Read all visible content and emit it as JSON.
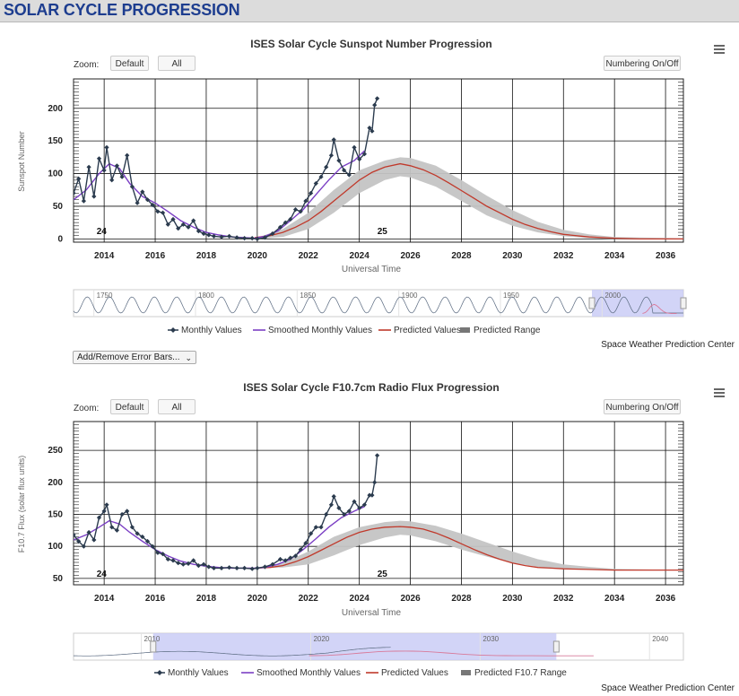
{
  "page": {
    "title": "SOLAR CYCLE PROGRESSION"
  },
  "colors": {
    "monthly": "#2b3b4e",
    "smoothed": "#7b3fc4",
    "predicted": "#c0392b",
    "range": "#c4c4c4",
    "navigator_fill": "#c7c9f5",
    "header_text": "#1d3d8f"
  },
  "icons": {
    "menu": "hamburger-menu-icon",
    "handle": "navigator-handle-icon",
    "dropdown": "chevron-down-icon"
  },
  "controls": {
    "zoom_label": "Zoom:",
    "default_label": "Default",
    "all_label": "All",
    "numbering_label": "Numbering On/Off",
    "error_bars_label": "Add/Remove Error Bars..."
  },
  "credit": "Space Weather Prediction Center",
  "charts": [
    {
      "id": "ssn",
      "title": "ISES Solar Cycle Sunspot Number Progression",
      "xlabel": "Universal Time",
      "ylabel": "Sunspot Number",
      "x_ticks": [
        "2014",
        "2016",
        "2018",
        "2020",
        "2022",
        "2024",
        "2026",
        "2028",
        "2030",
        "2032",
        "2034",
        "2036"
      ],
      "y_ticks": [
        "0",
        "50",
        "100",
        "150",
        "200"
      ],
      "cycle_labels": [
        "24",
        "25"
      ],
      "legend": [
        "Monthly Values",
        "Smoothed Monthly Values",
        "Predicted Values",
        "Predicted Range"
      ],
      "navigator_labels": [
        "1750",
        "1800",
        "1850",
        "1900",
        "1950",
        "2000"
      ]
    },
    {
      "id": "f107",
      "title": "ISES Solar Cycle F10.7cm Radio Flux Progression",
      "xlabel": "Universal Time",
      "ylabel": "F10.7 Flux (solar flux units)",
      "x_ticks": [
        "2014",
        "2016",
        "2018",
        "2020",
        "2022",
        "2024",
        "2026",
        "2028",
        "2030",
        "2032",
        "2034",
        "2036"
      ],
      "y_ticks": [
        "50",
        "100",
        "150",
        "200",
        "250"
      ],
      "cycle_labels": [
        "24",
        "25"
      ],
      "legend": [
        "Monthly Values",
        "Smoothed Monthly Values",
        "Predicted Values",
        "Predicted F10.7 Range"
      ],
      "navigator_labels": [
        "2010",
        "2020",
        "2030",
        "2040"
      ]
    }
  ],
  "chart_data": [
    {
      "type": "line",
      "title": "ISES Solar Cycle Sunspot Number Progression",
      "xlabel": "Universal Time",
      "ylabel": "Sunspot Number",
      "xlim": [
        2012.8,
        2036.7
      ],
      "ylim": [
        -5,
        245
      ],
      "grid": true,
      "legend_position": "bottom",
      "series": [
        {
          "name": "Monthly Values",
          "x": [
            2012.8,
            2013.0,
            2013.2,
            2013.4,
            2013.6,
            2013.8,
            2014.0,
            2014.1,
            2014.3,
            2014.5,
            2014.7,
            2014.9,
            2015.1,
            2015.3,
            2015.5,
            2015.7,
            2015.9,
            2016.1,
            2016.3,
            2016.5,
            2016.7,
            2016.9,
            2017.1,
            2017.3,
            2017.5,
            2017.7,
            2017.9,
            2018.1,
            2018.3,
            2018.6,
            2018.9,
            2019.2,
            2019.5,
            2019.8,
            2020.0,
            2020.3,
            2020.6,
            2020.9,
            2021.1,
            2021.3,
            2021.5,
            2021.7,
            2021.9,
            2022.1,
            2022.3,
            2022.5,
            2022.7,
            2022.9,
            2023.0,
            2023.2,
            2023.4,
            2023.6,
            2023.8,
            2024.0,
            2024.2,
            2024.4,
            2024.5,
            2024.6,
            2024.7
          ],
          "y": [
            70,
            92,
            58,
            110,
            65,
            123,
            105,
            140,
            90,
            112,
            95,
            128,
            80,
            55,
            72,
            60,
            52,
            42,
            40,
            22,
            30,
            16,
            22,
            18,
            28,
            12,
            8,
            6,
            4,
            3,
            4,
            2,
            1,
            1,
            0,
            2,
            8,
            18,
            25,
            30,
            45,
            42,
            58,
            70,
            85,
            95,
            110,
            128,
            152,
            120,
            105,
            98,
            140,
            122,
            130,
            170,
            165,
            205,
            215
          ]
        },
        {
          "name": "Smoothed Monthly Values",
          "x": [
            2012.8,
            2013.3,
            2013.8,
            2014.2,
            2014.6,
            2015.0,
            2015.5,
            2016.0,
            2016.5,
            2017.0,
            2017.5,
            2018.0,
            2018.5,
            2019.0,
            2019.5,
            2019.9,
            2020.3,
            2020.8,
            2021.3,
            2021.8,
            2022.3,
            2022.8,
            2023.3,
            2023.8,
            2024.2
          ],
          "y": [
            60,
            75,
            100,
            115,
            108,
            85,
            65,
            55,
            42,
            28,
            18,
            10,
            6,
            3,
            2,
            1,
            4,
            12,
            28,
            45,
            68,
            90,
            110,
            120,
            135
          ]
        },
        {
          "name": "Predicted Values",
          "x": [
            2019.9,
            2020.5,
            2021.0,
            2021.5,
            2022.0,
            2022.5,
            2023.0,
            2023.5,
            2024.0,
            2024.5,
            2025.0,
            2025.6,
            2026.0,
            2026.5,
            2027.0,
            2027.5,
            2028.0,
            2028.5,
            2029.0,
            2029.5,
            2030.0,
            2030.5,
            2031.0,
            2031.5,
            2032.0,
            2033.0,
            2034.0,
            2035.0,
            2036.7
          ],
          "y": [
            2,
            5,
            10,
            18,
            28,
            42,
            58,
            74,
            90,
            102,
            110,
            115,
            112,
            106,
            97,
            86,
            74,
            62,
            50,
            40,
            30,
            22,
            16,
            11,
            7,
            3,
            1,
            0,
            0
          ]
        },
        {
          "name": "Predicted Range",
          "x": [
            2020.0,
            2021.0,
            2022.0,
            2023.0,
            2024.0,
            2025.0,
            2025.6,
            2026.0,
            2027.0,
            2028.0,
            2029.0,
            2030.0,
            2031.0,
            2032.0,
            2033.0,
            2034.0,
            2036.7
          ],
          "low": [
            0,
            3,
            15,
            40,
            70,
            90,
            96,
            94,
            80,
            58,
            36,
            20,
            10,
            4,
            1,
            0,
            0
          ],
          "high": [
            2,
            15,
            40,
            75,
            105,
            120,
            125,
            124,
            112,
            90,
            66,
            44,
            26,
            14,
            7,
            3,
            1
          ]
        }
      ]
    },
    {
      "type": "line",
      "title": "ISES Solar Cycle F10.7cm Radio Flux Progression",
      "xlabel": "Universal Time",
      "ylabel": "F10.7 Flux (solar flux units)",
      "xlim": [
        2012.8,
        2036.7
      ],
      "ylim": [
        40,
        295
      ],
      "grid": true,
      "legend_position": "bottom",
      "series": [
        {
          "name": "Monthly Values",
          "x": [
            2012.8,
            2013.0,
            2013.2,
            2013.4,
            2013.6,
            2013.8,
            2014.0,
            2014.1,
            2014.3,
            2014.5,
            2014.7,
            2014.9,
            2015.1,
            2015.3,
            2015.5,
            2015.7,
            2015.9,
            2016.1,
            2016.3,
            2016.5,
            2016.7,
            2016.9,
            2017.1,
            2017.3,
            2017.5,
            2017.7,
            2017.9,
            2018.1,
            2018.3,
            2018.6,
            2018.9,
            2019.2,
            2019.5,
            2019.8,
            2020.0,
            2020.3,
            2020.6,
            2020.9,
            2021.1,
            2021.3,
            2021.5,
            2021.7,
            2021.9,
            2022.1,
            2022.3,
            2022.5,
            2022.7,
            2022.9,
            2023.0,
            2023.2,
            2023.4,
            2023.6,
            2023.8,
            2024.0,
            2024.2,
            2024.4,
            2024.5,
            2024.6,
            2024.7
          ],
          "y": [
            118,
            108,
            100,
            122,
            110,
            145,
            155,
            165,
            130,
            125,
            150,
            155,
            130,
            120,
            115,
            108,
            100,
            90,
            88,
            80,
            78,
            74,
            72,
            73,
            78,
            70,
            72,
            68,
            66,
            66,
            67,
            66,
            66,
            65,
            66,
            68,
            72,
            80,
            78,
            82,
            85,
            95,
            105,
            120,
            130,
            130,
            150,
            165,
            178,
            160,
            150,
            155,
            170,
            160,
            165,
            180,
            180,
            200,
            242
          ]
        },
        {
          "name": "Smoothed Monthly Values",
          "x": [
            2012.8,
            2013.3,
            2013.8,
            2014.2,
            2014.6,
            2015.0,
            2015.5,
            2016.0,
            2016.5,
            2017.0,
            2017.5,
            2018.0,
            2018.5,
            2019.0,
            2019.5,
            2019.9,
            2020.3,
            2020.8,
            2021.3,
            2021.8,
            2022.3,
            2022.8,
            2023.3,
            2023.8,
            2024.2
          ],
          "y": [
            110,
            118,
            130,
            140,
            135,
            122,
            108,
            95,
            85,
            77,
            72,
            69,
            67,
            66,
            66,
            66,
            67,
            72,
            80,
            95,
            112,
            130,
            145,
            155,
            162
          ]
        },
        {
          "name": "Predicted Values",
          "x": [
            2019.9,
            2020.5,
            2021.0,
            2021.5,
            2022.0,
            2022.5,
            2023.0,
            2023.5,
            2024.0,
            2024.5,
            2025.0,
            2025.6,
            2026.0,
            2026.5,
            2027.0,
            2027.5,
            2028.0,
            2028.5,
            2029.0,
            2029.5,
            2030.0,
            2030.5,
            2031.0,
            2031.5,
            2032.0,
            2033.0,
            2034.0,
            2035.0,
            2036.7
          ],
          "y": [
            66,
            67,
            70,
            76,
            84,
            94,
            104,
            114,
            122,
            127,
            130,
            131,
            130,
            127,
            121,
            113,
            104,
            95,
            87,
            80,
            74,
            70,
            67,
            66,
            65,
            64,
            63,
            63,
            63
          ]
        },
        {
          "name": "Predicted F10.7 Range",
          "x": [
            2020.0,
            2021.0,
            2022.0,
            2023.0,
            2024.0,
            2025.0,
            2025.6,
            2026.0,
            2027.0,
            2028.0,
            2029.0,
            2030.0,
            2031.0,
            2032.0,
            2033.0,
            2034.0,
            2036.7
          ],
          "low": [
            66,
            67,
            72,
            86,
            102,
            114,
            118,
            117,
            108,
            95,
            84,
            74,
            68,
            65,
            64,
            63,
            63
          ],
          "high": [
            67,
            74,
            92,
            115,
            130,
            138,
            140,
            139,
            132,
            120,
            106,
            92,
            80,
            72,
            68,
            65,
            63
          ]
        }
      ]
    }
  ]
}
